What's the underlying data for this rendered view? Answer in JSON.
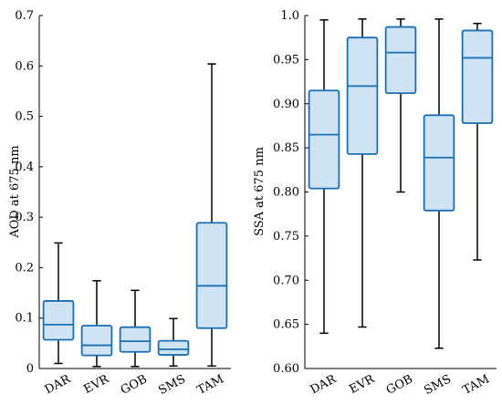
{
  "colors": {
    "box_fill": "#cfe3f4",
    "box_edge": "#1a6fb5",
    "whisker": "#000000",
    "axis": "#000000"
  },
  "chart_data": [
    {
      "type": "box",
      "xlabel": "",
      "ylabel": "AOD at 675 nm",
      "ylim": [
        0,
        0.7
      ],
      "yticks": [
        0,
        0.1,
        0.2,
        0.3,
        0.4,
        0.5,
        0.6,
        0.7
      ],
      "ytick_labels": [
        "0",
        "0.1",
        "0.2",
        "0.3",
        "0.4",
        "0.5",
        "0.6",
        "0.7"
      ],
      "grid": false,
      "categories": [
        "DAR",
        "EVR",
        "GOB",
        "SMS",
        "TAM"
      ],
      "boxes": [
        {
          "min": 0.01,
          "q1": 0.057,
          "median": 0.087,
          "q3": 0.134,
          "max": 0.249
        },
        {
          "min": 0.004,
          "q1": 0.026,
          "median": 0.046,
          "q3": 0.085,
          "max": 0.174
        },
        {
          "min": 0.004,
          "q1": 0.033,
          "median": 0.054,
          "q3": 0.082,
          "max": 0.155
        },
        {
          "min": 0.005,
          "q1": 0.027,
          "median": 0.038,
          "q3": 0.055,
          "max": 0.099
        },
        {
          "min": 0.005,
          "q1": 0.08,
          "median": 0.164,
          "q3": 0.289,
          "max": 0.604
        }
      ]
    },
    {
      "type": "box",
      "xlabel": "",
      "ylabel": "SSA at 675 nm",
      "ylim": [
        0.6,
        1.0
      ],
      "yticks": [
        0.6,
        0.65,
        0.7,
        0.75,
        0.8,
        0.85,
        0.9,
        0.95,
        1.0
      ],
      "ytick_labels": [
        "0.60",
        "0.65",
        "0.70",
        "0.75",
        "0.80",
        "0.85",
        "0.90",
        "0.95",
        "1.0"
      ],
      "grid": false,
      "categories": [
        "DAR",
        "EVR",
        "GOB",
        "SMS",
        "TAM"
      ],
      "boxes": [
        {
          "min": 0.64,
          "q1": 0.804,
          "median": 0.865,
          "q3": 0.915,
          "max": 0.995
        },
        {
          "min": 0.647,
          "q1": 0.843,
          "median": 0.92,
          "q3": 0.975,
          "max": 0.996
        },
        {
          "min": 0.8,
          "q1": 0.912,
          "median": 0.958,
          "q3": 0.987,
          "max": 0.996
        },
        {
          "min": 0.623,
          "q1": 0.779,
          "median": 0.839,
          "q3": 0.887,
          "max": 0.996
        },
        {
          "min": 0.723,
          "q1": 0.878,
          "median": 0.952,
          "q3": 0.983,
          "max": 0.991
        }
      ]
    }
  ]
}
